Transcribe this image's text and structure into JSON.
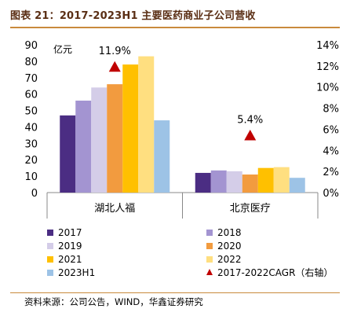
{
  "header": {
    "title": "图表 21：2017-2023H1 主要医药商业子公司营收"
  },
  "footer": {
    "source": "资料来源：公司公告，WIND，华鑫证券研究"
  },
  "colors": {
    "title": "#5a2e14",
    "rule": "#c98a3c",
    "cagr_marker": "#c00000"
  },
  "chart_data": {
    "type": "bar",
    "categories": [
      "湖北人福",
      "北京医疗"
    ],
    "series": [
      {
        "name": "2017",
        "color": "#4b2d83",
        "values": [
          47,
          12
        ]
      },
      {
        "name": "2018",
        "color": "#a394d1",
        "values": [
          56,
          13.5
        ]
      },
      {
        "name": "2019",
        "color": "#d4cde8",
        "values": [
          64,
          13
        ]
      },
      {
        "name": "2020",
        "color": "#f29b3f",
        "values": [
          66,
          11
        ]
      },
      {
        "name": "2021",
        "color": "#ffc000",
        "values": [
          78,
          15
        ]
      },
      {
        "name": "2022",
        "color": "#ffdf80",
        "values": [
          83,
          15.5
        ]
      },
      {
        "name": "2023H1",
        "color": "#9dc3e6",
        "values": [
          44,
          9
        ]
      }
    ],
    "cagr": {
      "name": "2017-2022CAGR（右轴）",
      "values": [
        0.119,
        0.054
      ],
      "labels": [
        "11.9%",
        "5.4%"
      ]
    },
    "ylabel": "亿元",
    "ylim": [
      0,
      90
    ],
    "yticks": [
      0,
      10,
      20,
      30,
      40,
      50,
      60,
      70,
      80,
      90
    ],
    "y2lim": [
      0,
      0.14
    ],
    "y2ticks": [
      "0%",
      "2%",
      "4%",
      "6%",
      "8%",
      "10%",
      "12%",
      "14%"
    ],
    "grid": false,
    "legend_position": "bottom"
  }
}
